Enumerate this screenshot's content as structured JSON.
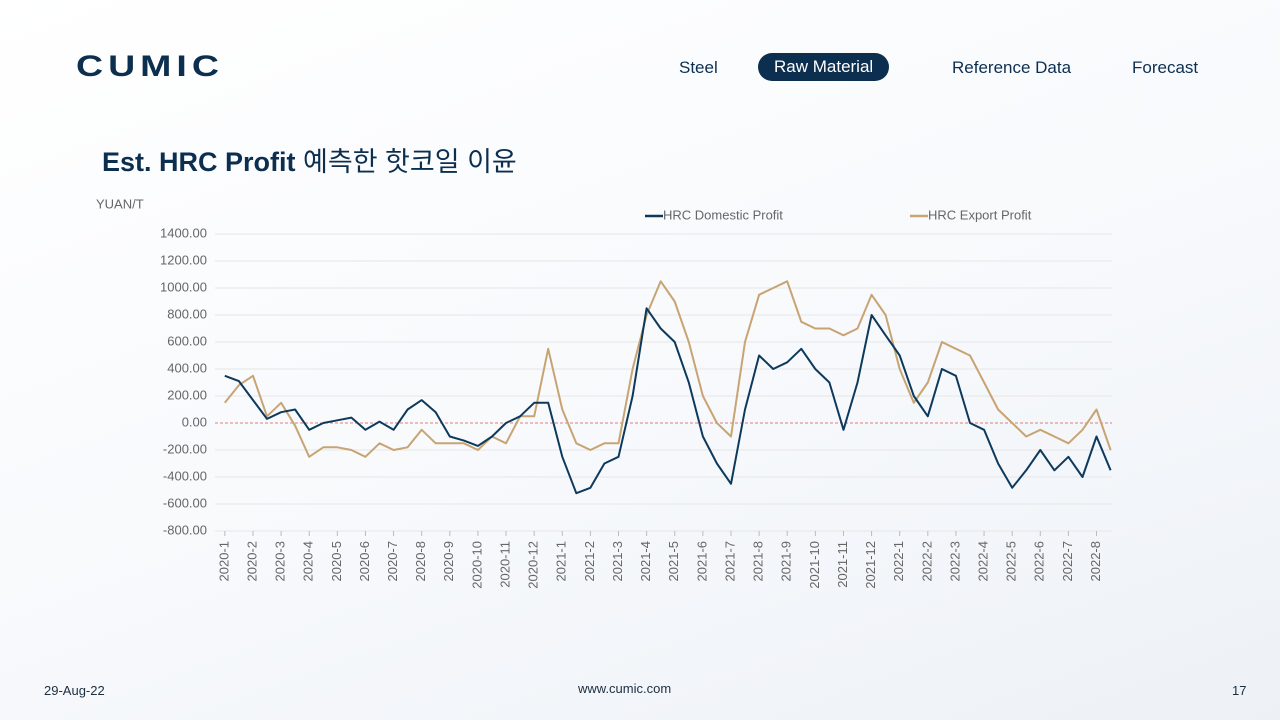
{
  "header": {
    "logo": "CUMIC",
    "nav": [
      "Steel",
      "Raw Material",
      "Reference Data",
      "Forecast"
    ],
    "active_nav": 1
  },
  "chart_data": {
    "type": "line",
    "title": "Est. HRC Profit",
    "title_korean": "예측한 핫코일 이윤",
    "y_label": "YUAN/T",
    "x": [
      0,
      0.5,
      1,
      1.5,
      2,
      2.5,
      3,
      3.5,
      4,
      4.5,
      5,
      5.5,
      6,
      6.5,
      7,
      7.5,
      8,
      8.5,
      9,
      9.5,
      10,
      10.5,
      11,
      11.5,
      12,
      12.5,
      13,
      13.5,
      14,
      14.5,
      15,
      15.5,
      16,
      16.5,
      17,
      17.5,
      18,
      18.5,
      19,
      19.5,
      20,
      20.5,
      21,
      21.5,
      22,
      22.5,
      23,
      23.5,
      24,
      24.5,
      25,
      25.5,
      26,
      26.5,
      27,
      27.5,
      28,
      28.5,
      29,
      29.5,
      30,
      30.5,
      31,
      31.5
    ],
    "xlim": [
      -0.35,
      31.55
    ],
    "xticks": [
      {
        "value": 0,
        "label": "2020-1"
      },
      {
        "value": 1,
        "label": "2020-2"
      },
      {
        "value": 2,
        "label": "2020-3"
      },
      {
        "value": 3,
        "label": "2020-4"
      },
      {
        "value": 4,
        "label": "2020-5"
      },
      {
        "value": 5,
        "label": "2020-6"
      },
      {
        "value": 6,
        "label": "2020-7"
      },
      {
        "value": 7,
        "label": "2020-8"
      },
      {
        "value": 8,
        "label": "2020-9"
      },
      {
        "value": 9,
        "label": "2020-10"
      },
      {
        "value": 10,
        "label": "2020-11"
      },
      {
        "value": 11,
        "label": "2020-12"
      },
      {
        "value": 12,
        "label": "2021-1"
      },
      {
        "value": 13,
        "label": "2021-2"
      },
      {
        "value": 14,
        "label": "2021-3"
      },
      {
        "value": 15,
        "label": "2021-4"
      },
      {
        "value": 16,
        "label": "2021-5"
      },
      {
        "value": 17,
        "label": "2021-6"
      },
      {
        "value": 18,
        "label": "2021-7"
      },
      {
        "value": 19,
        "label": "2021-8"
      },
      {
        "value": 20,
        "label": "2021-9"
      },
      {
        "value": 21,
        "label": "2021-10"
      },
      {
        "value": 22,
        "label": "2021-11"
      },
      {
        "value": 23,
        "label": "2021-12"
      },
      {
        "value": 24,
        "label": "2022-1"
      },
      {
        "value": 25,
        "label": "2022-2"
      },
      {
        "value": 26,
        "label": "2022-3"
      },
      {
        "value": 27,
        "label": "2022-4"
      },
      {
        "value": 28,
        "label": "2022-5"
      },
      {
        "value": 29,
        "label": "2022-6"
      },
      {
        "value": 30,
        "label": "2022-7"
      },
      {
        "value": 31,
        "label": "2022-8"
      }
    ],
    "ylim": [
      -800,
      1400
    ],
    "yticks": [
      {
        "value": -800,
        "label": "-800.00"
      },
      {
        "value": -600,
        "label": "-600.00"
      },
      {
        "value": -400,
        "label": "-400.00"
      },
      {
        "value": -200,
        "label": "-200.00"
      },
      {
        "value": 0,
        "label": "0.00"
      },
      {
        "value": 200,
        "label": "200.00"
      },
      {
        "value": 400,
        "label": "400.00"
      },
      {
        "value": 600,
        "label": "600.00"
      },
      {
        "value": 800,
        "label": "800.00"
      },
      {
        "value": 1000,
        "label": "1000.00"
      },
      {
        "value": 1200,
        "label": "1200.00"
      },
      {
        "value": 1400,
        "label": "1400.00"
      }
    ],
    "grid": true,
    "zero_line_color": "#d9534f",
    "legend": "top",
    "series": [
      {
        "name": "HRC Domestic Profit",
        "color": "#0d3a5c",
        "values": [
          350,
          310,
          170,
          30,
          80,
          100,
          -50,
          0,
          20,
          40,
          -50,
          10,
          -50,
          100,
          170,
          80,
          -100,
          -130,
          -170,
          -100,
          0,
          50,
          150,
          150,
          -250,
          -520,
          -480,
          -300,
          -250,
          200,
          850,
          700,
          600,
          300,
          -100,
          -300,
          -450,
          100,
          500,
          400,
          450,
          550,
          400,
          300,
          -50,
          300,
          800,
          650,
          500,
          200,
          50,
          400,
          350,
          0,
          -50,
          -300,
          -480,
          -350,
          -200,
          -350,
          -250,
          -400,
          -100,
          -350
        ]
      },
      {
        "name": "HRC Export Profit",
        "color": "#c8a473",
        "values": [
          150,
          280,
          350,
          50,
          150,
          -20,
          -250,
          -180,
          -180,
          -200,
          -250,
          -150,
          -200,
          -180,
          -50,
          -150,
          -150,
          -150,
          -200,
          -100,
          -150,
          50,
          50,
          550,
          100,
          -150,
          -200,
          -150,
          -150,
          400,
          800,
          1050,
          900,
          600,
          200,
          0,
          -100,
          600,
          950,
          1000,
          1050,
          750,
          700,
          700,
          650,
          700,
          950,
          800,
          400,
          150,
          300,
          600,
          550,
          500,
          300,
          100,
          0,
          -100,
          -50,
          -100,
          -150,
          -50,
          100,
          -200
        ]
      }
    ]
  },
  "footer": {
    "date": "29-Aug-22",
    "website": "www.cumic.com",
    "page": "17"
  }
}
